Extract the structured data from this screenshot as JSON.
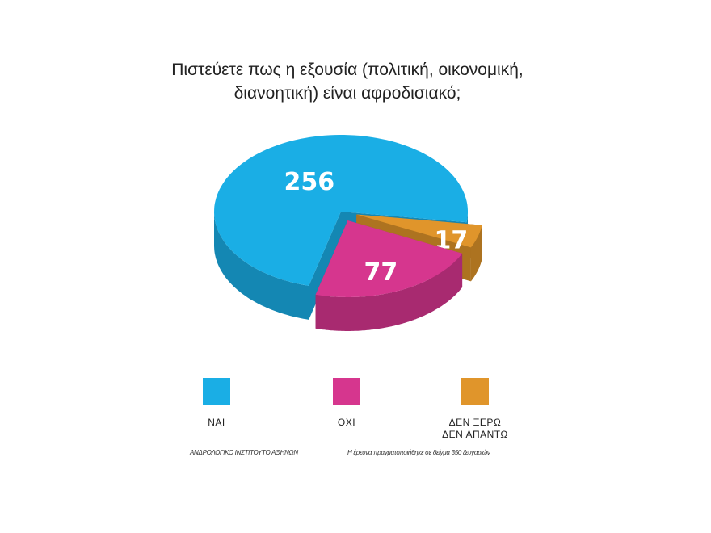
{
  "chart_data": {
    "type": "pie",
    "title": "Πιστεύετε πως η εξουσία (πολιτική, οικονομική, διανοητική) είναι αφροδισιακό;",
    "categories": [
      "ΝΑΙ",
      "ΟΧΙ",
      "ΔΕΝ ΞΕΡΩ ΔΕΝ ΑΠΑΝΤΩ"
    ],
    "values": [
      256,
      77,
      17
    ],
    "colors": [
      "#1aaee5",
      "#d6368e",
      "#e0952b"
    ],
    "wall_colors": [
      "#1487b3",
      "#a82a70",
      "#ad7320"
    ],
    "source": "ΑΝΔΡΟΛΟΓΙΚΟ ΙΝΣΤΙΤΟΥΤΟ ΑΘΗΝΩΝ",
    "note": "Η έρευνα πραγματοποιήθηκε σε δείγμα 350 ζευγαριών"
  }
}
